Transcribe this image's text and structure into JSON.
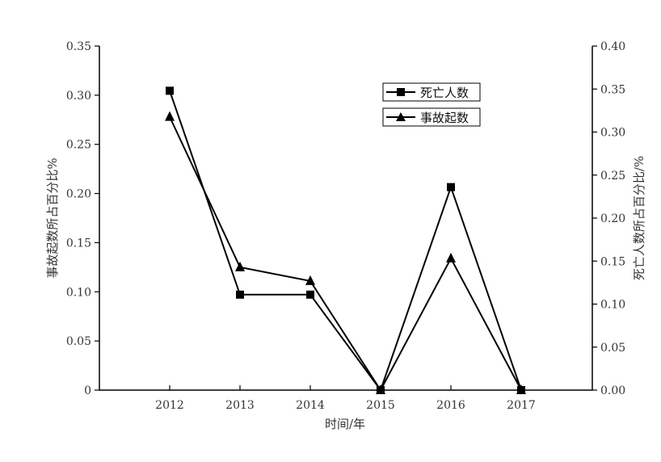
{
  "chart_data": {
    "type": "line",
    "categories": [
      "2012",
      "2013",
      "2014",
      "2015",
      "2016",
      "2017"
    ],
    "xlabel": "时间/年",
    "ylabel_left": "事故起数所占百分比%",
    "ylabel_right": "死亡人数所占百分比/%",
    "ylim_left": [
      0,
      0.35
    ],
    "ylim_right": [
      0,
      0.4
    ],
    "yticks_left": [
      "0",
      "0.05",
      "0.10",
      "0.15",
      "0.20",
      "0.25",
      "0.30",
      "0.35"
    ],
    "yticks_right": [
      "0.00",
      "0.05",
      "0.10",
      "0.15",
      "0.20",
      "0.25",
      "0.30",
      "0.35",
      "0.40"
    ],
    "legend_position": "top-right",
    "grid": false,
    "series": [
      {
        "name": "死亡人数",
        "axis": "right",
        "marker": "square",
        "values": [
          0.348,
          0.111,
          0.111,
          0.0,
          0.236,
          0.0
        ]
      },
      {
        "name": "事故起数",
        "axis": "left",
        "marker": "triangle",
        "values": [
          0.278,
          0.125,
          0.111,
          0.0,
          0.134,
          0.0
        ]
      }
    ]
  }
}
